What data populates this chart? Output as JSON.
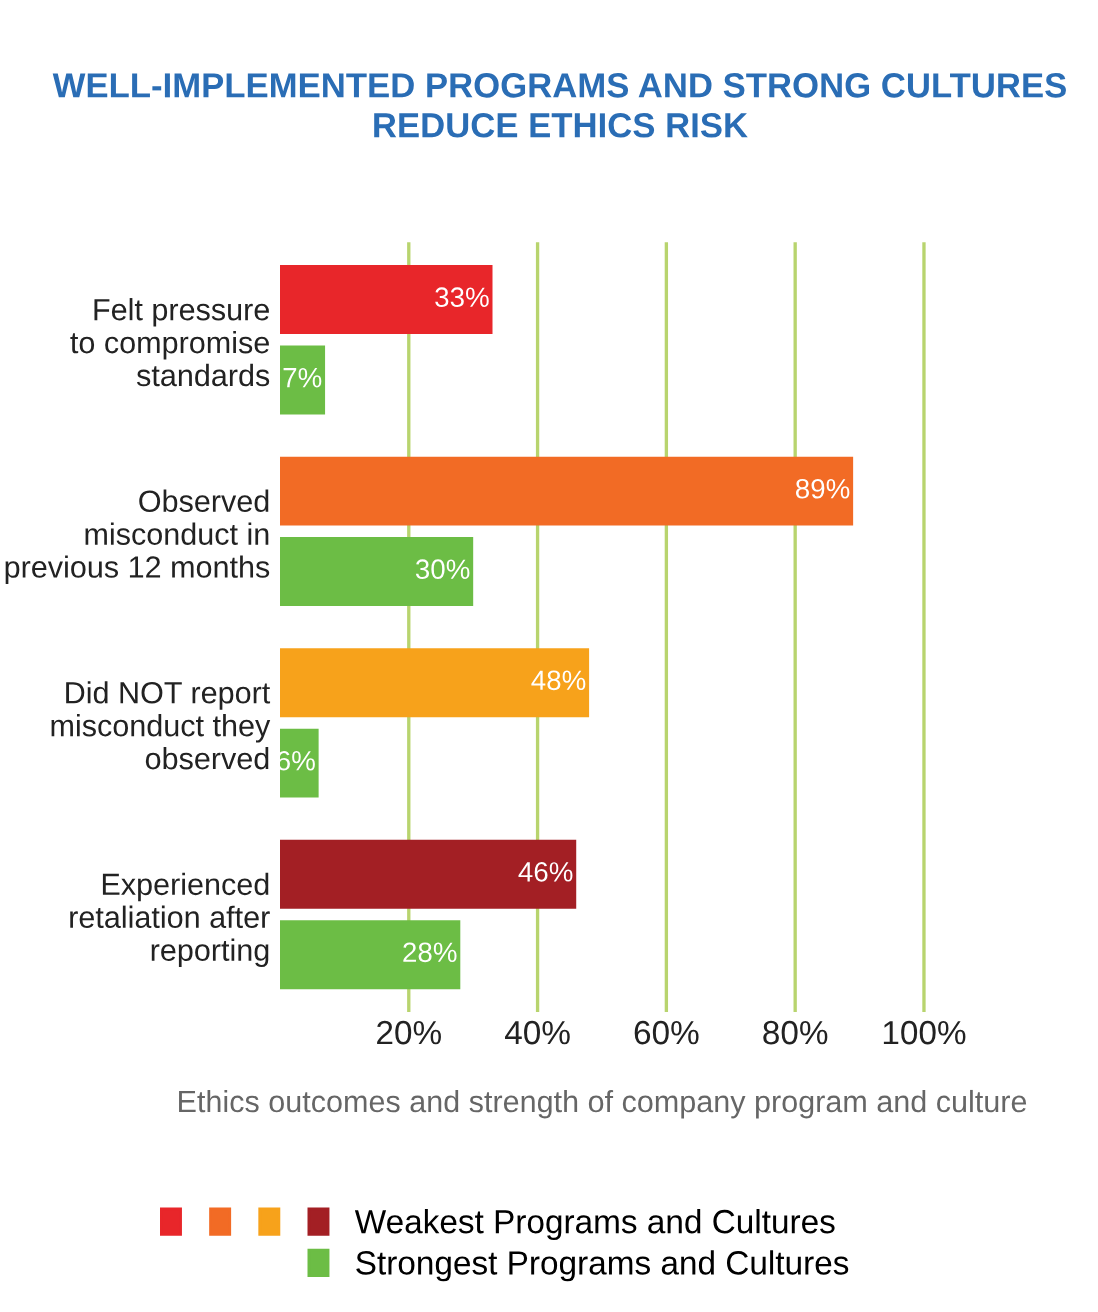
{
  "chart_data": {
    "type": "bar",
    "orientation": "horizontal",
    "title": "WELL-IMPLEMENTED PROGRAMS AND STRONG CULTURES\nREDUCE ETHICS RISK",
    "xlabel": "Ethics outcomes and strength of company program and culture",
    "categories": [
      "Felt pressure\nto compromise\nstandards",
      "Observed\nmisconduct in\nprevious 12 months",
      "Did NOT report\nmisconduct they\nobserved",
      "Experienced\nretaliation after\nreporting"
    ],
    "series": [
      {
        "name": "Weakest Programs and Cultures",
        "colors": [
          "#e8262a",
          "#f26b25",
          "#f7a21b",
          "#a31f24"
        ],
        "values": [
          33,
          89,
          48,
          46
        ],
        "value_labels": [
          "33%",
          "89%",
          "48%",
          "46%"
        ]
      },
      {
        "name": "Strongest Programs and Cultures",
        "color": "#6cbd45",
        "values": [
          7,
          30,
          6,
          28
        ],
        "value_labels": [
          "7%",
          "30%",
          "6%",
          "28%"
        ]
      }
    ],
    "xlim": [
      0,
      100
    ],
    "xticks": [
      {
        "value": 20,
        "label": "20%"
      },
      {
        "value": 40,
        "label": "40%"
      },
      {
        "value": 60,
        "label": "60%"
      },
      {
        "value": 80,
        "label": "80%"
      },
      {
        "value": 100,
        "label": "100%"
      }
    ],
    "grid": "x",
    "legend": "bottom"
  }
}
